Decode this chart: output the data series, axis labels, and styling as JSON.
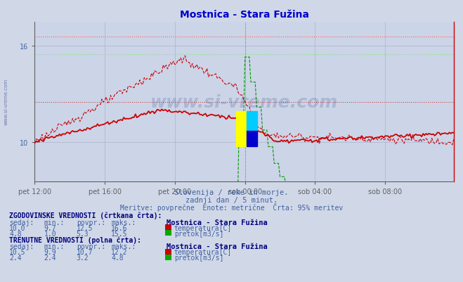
{
  "title": "Mostnica - Stara Fužina",
  "title_color": "#0000cc",
  "bg_color": "#d0d8e8",
  "plot_bg_color": "#ccd4e8",
  "grid_color": "#aab4cc",
  "axis_color": "#606060",
  "tick_color": "#4060a0",
  "watermark": "www.si-vreme.com",
  "watermark_color": "#1a3a7a",
  "subtitle1": "Slovenija / reke in morje.",
  "subtitle2": "zadnji dan / 5 minut.",
  "subtitle3": "Meritve: povprečne  Enote: metrične  Črta: 95% meritev",
  "xticklabels": [
    "pet 12:00",
    "pet 16:00",
    "pet 20:00",
    "sob 00:00",
    "sob 04:00",
    "sob 08:00"
  ],
  "xtick_positions": [
    0,
    48,
    96,
    144,
    192,
    240
  ],
  "total_points": 288,
  "ymin": 7.5,
  "ymax": 17.5,
  "yticks": [
    10,
    16
  ],
  "hist_temp_color": "#cc0000",
  "hist_flow_color": "#009900",
  "curr_temp_color": "#cc0000",
  "curr_flow_color": "#00cc00",
  "ref_line_color_red_hi": "#ff6060",
  "ref_line_color_red_lo": "#cc4444",
  "ref_line_color_grn_hi": "#88dd88",
  "ref_line_color_grn_lo": "#009900",
  "hist_max_temp": 16.6,
  "hist_avg_temp": 12.5,
  "hist_min_temp": 9.7,
  "hist_max_flow": 15.5,
  "hist_avg_flow": 5.3,
  "hist_min_flow": 1.0,
  "curr_max_temp": 12.2,
  "curr_avg_temp": 10.7,
  "curr_min_temp": 9.9,
  "curr_max_flow": 4.8,
  "curr_avg_flow": 3.2,
  "curr_min_flow": 2.4,
  "curr_sedaj_temp": 10.5,
  "curr_sedaj_flow": 2.4,
  "hist_sedaj_temp": 10.0,
  "hist_sedaj_flow": 4.8,
  "table_header_color": "#000080",
  "table_label_color": "#4060a0",
  "table_value_color": "#4060a0",
  "table_station_color": "#000080",
  "legend_temp_color": "#cc0000",
  "legend_flow_color": "#00aa00"
}
